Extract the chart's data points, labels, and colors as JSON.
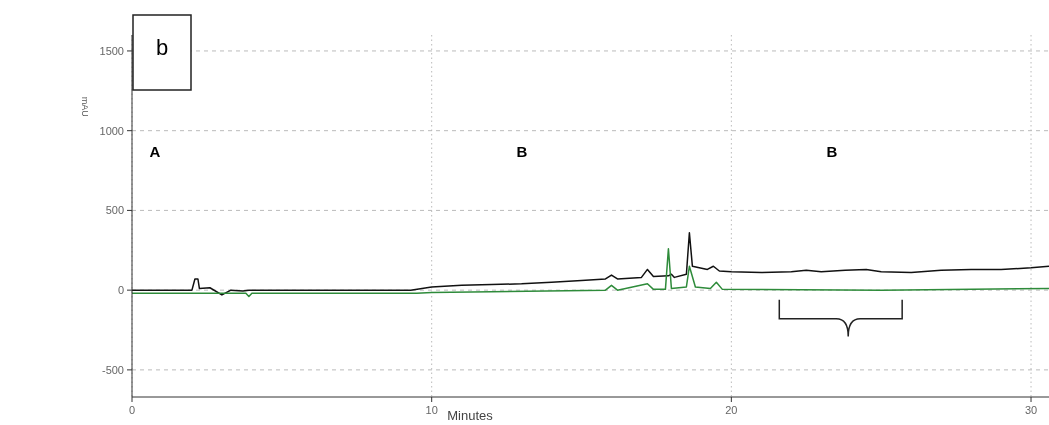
{
  "chart_data": {
    "type": "line",
    "ylabel": "mAU",
    "xlabel": "Minutes",
    "annotations": [
      "b",
      "A",
      "B",
      "B"
    ],
    "xlim": [
      0,
      30.6
    ],
    "xticks": [
      0,
      10,
      20,
      30
    ],
    "ylim": [
      -670,
      1600
    ],
    "yticks": [
      -500,
      0,
      500,
      1000,
      1500
    ],
    "grid": true,
    "series": [
      {
        "color": "#111111",
        "x": [
          0,
          2.0,
          2.1,
          2.2,
          2.25,
          2.6,
          3.0,
          3.3,
          3.7,
          3.9,
          9.3,
          10,
          11,
          12,
          13,
          14,
          15,
          15.8,
          16.0,
          16.2,
          17.0,
          17.2,
          17.4,
          17.9,
          18.0,
          18.1,
          18.5,
          18.6,
          18.7,
          19.2,
          19.4,
          19.6,
          20,
          21,
          22,
          22.5,
          23,
          23.8,
          24.5,
          25,
          26,
          27,
          28,
          29,
          30,
          30.6
        ],
        "values": [
          0,
          0,
          70,
          70,
          10,
          15,
          -30,
          0,
          -5,
          0,
          0,
          20,
          30,
          35,
          40,
          50,
          60,
          70,
          95,
          70,
          80,
          130,
          85,
          90,
          100,
          80,
          100,
          360,
          150,
          130,
          150,
          120,
          115,
          110,
          115,
          125,
          115,
          125,
          130,
          115,
          110,
          125,
          130,
          130,
          140,
          150
        ]
      },
      {
        "color": "#2e8b3a",
        "x": [
          0,
          3.8,
          3.9,
          4.0,
          9.5,
          10,
          12,
          15.8,
          16.0,
          16.2,
          17.2,
          17.4,
          17.8,
          17.9,
          18.0,
          18.5,
          18.6,
          18.8,
          19.3,
          19.5,
          19.7,
          25,
          30.6
        ],
        "values": [
          -20,
          -20,
          -40,
          -20,
          -20,
          -15,
          -10,
          0,
          30,
          0,
          40,
          5,
          5,
          260,
          10,
          20,
          150,
          20,
          10,
          50,
          5,
          0,
          10
        ]
      }
    ]
  }
}
